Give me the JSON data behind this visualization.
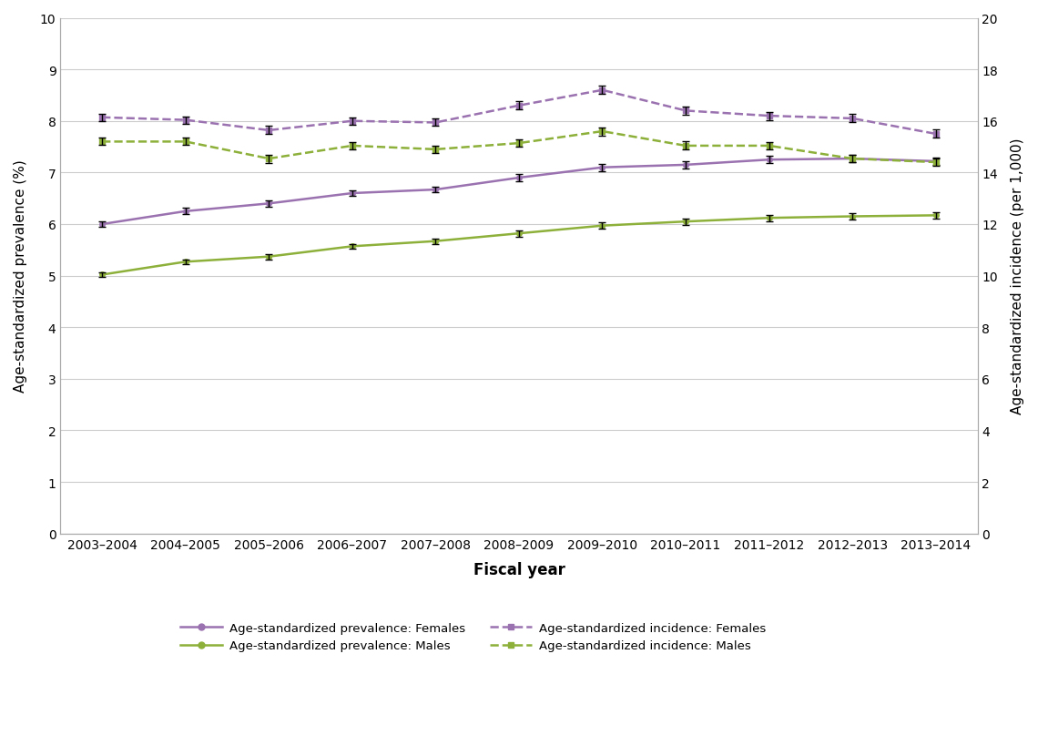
{
  "fiscal_years": [
    "2003–2004",
    "2004–2005",
    "2005–2006",
    "2006–2007",
    "2007–2008",
    "2008–2009",
    "2009–2010",
    "2010–2011",
    "2011–2012",
    "2012–2013",
    "2013–2014"
  ],
  "prev_females": [
    6.0,
    6.25,
    6.4,
    6.6,
    6.67,
    6.9,
    7.1,
    7.15,
    7.25,
    7.27,
    7.22
  ],
  "prev_females_err": [
    0.06,
    0.06,
    0.06,
    0.06,
    0.06,
    0.07,
    0.07,
    0.07,
    0.07,
    0.07,
    0.07
  ],
  "prev_males": [
    5.02,
    5.27,
    5.37,
    5.57,
    5.67,
    5.82,
    5.97,
    6.05,
    6.12,
    6.15,
    6.17
  ],
  "prev_males_err": [
    0.05,
    0.05,
    0.05,
    0.05,
    0.05,
    0.06,
    0.06,
    0.06,
    0.06,
    0.06,
    0.06
  ],
  "inc_females": [
    16.14,
    16.04,
    15.64,
    16.0,
    15.94,
    16.6,
    17.2,
    16.4,
    16.2,
    16.1,
    15.5
  ],
  "inc_females_err": [
    0.14,
    0.14,
    0.16,
    0.14,
    0.14,
    0.16,
    0.16,
    0.16,
    0.16,
    0.16,
    0.16
  ],
  "inc_males": [
    15.2,
    15.2,
    14.54,
    15.04,
    14.9,
    15.14,
    15.6,
    15.04,
    15.04,
    14.54,
    14.4
  ],
  "inc_males_err": [
    0.14,
    0.14,
    0.16,
    0.14,
    0.14,
    0.14,
    0.16,
    0.16,
    0.14,
    0.14,
    0.14
  ],
  "color_purple": "#9B72B0",
  "color_green": "#8DB03A",
  "xlabel": "Fiscal year",
  "ylabel_left": "Age-standardized prevalence (%)",
  "ylabel_right": "Age-standardized incidence (per 1,000)",
  "ylim_left": [
    0,
    10
  ],
  "ylim_right": [
    0,
    20
  ],
  "yticks_left": [
    0,
    1,
    2,
    3,
    4,
    5,
    6,
    7,
    8,
    9,
    10
  ],
  "yticks_right": [
    0,
    2,
    4,
    6,
    8,
    10,
    12,
    14,
    16,
    18,
    20
  ],
  "legend_entries": [
    "Age-standardized prevalence: Females",
    "Age-standardized prevalence: Males",
    "Age-standardized incidence: Females",
    "Age-standardized incidence: Males"
  ]
}
